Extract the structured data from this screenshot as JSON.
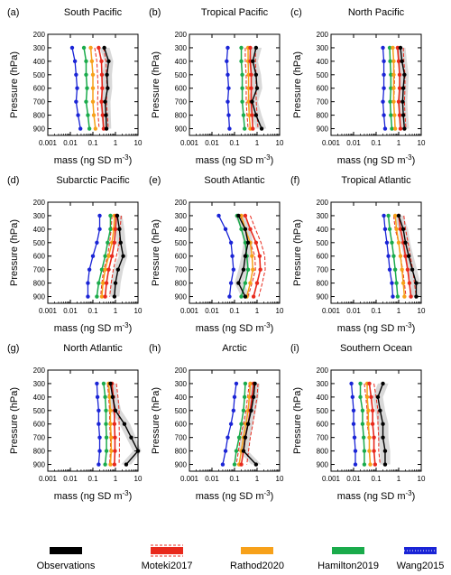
{
  "chart_data": {
    "type": "line",
    "ylabel": "Pressure (hPa)",
    "xlabel_base": "mass (ng SD m",
    "xlabel_sup": "-3",
    "xlabel_tail": ")",
    "x_scale": "log",
    "xlim": [
      0.001,
      10
    ],
    "ylim": [
      950,
      200
    ],
    "x_ticks": [
      "0.001",
      "0.01",
      "0.1",
      "1",
      "10"
    ],
    "y_ticks": [
      200,
      300,
      400,
      500,
      600,
      700,
      800,
      900
    ],
    "pressure_levels": [
      300,
      400,
      500,
      600,
      700,
      800,
      900
    ],
    "legend": [
      {
        "name": "Observations",
        "color": "#000000",
        "style": "solid"
      },
      {
        "name": "Moteki2017",
        "color": "#e8291c",
        "style": "dashed-band"
      },
      {
        "name": "Rathod2020",
        "color": "#f7a11a",
        "style": "solid"
      },
      {
        "name": "Hamilton2019",
        "color": "#1aab4b",
        "style": "solid"
      },
      {
        "name": "Wang2015",
        "color": "#1a24d6",
        "style": "dotted"
      }
    ],
    "panels": [
      {
        "label": "(a)",
        "title": "South Pacific",
        "obs": [
          0.32,
          0.5,
          0.42,
          0.45,
          0.35,
          0.38,
          0.4
        ],
        "obs_band": [
          [
            0.2,
            0.55
          ],
          [
            0.32,
            0.8
          ],
          [
            0.26,
            0.7
          ],
          [
            0.28,
            0.72
          ],
          [
            0.2,
            0.6
          ],
          [
            0.24,
            0.62
          ],
          [
            0.26,
            0.65
          ]
        ],
        "moteki": [
          0.18,
          0.24,
          0.25,
          0.26,
          0.24,
          0.27,
          0.3
        ],
        "moteki_range": [
          [
            0.12,
            0.3
          ],
          [
            0.15,
            0.38
          ],
          [
            0.16,
            0.4
          ],
          [
            0.17,
            0.42
          ],
          [
            0.16,
            0.4
          ],
          [
            0.17,
            0.44
          ],
          [
            0.19,
            0.48
          ]
        ],
        "rathod": [
          0.08,
          0.09,
          0.1,
          0.1,
          0.1,
          0.11,
          0.13
        ],
        "hamilton": [
          0.04,
          0.05,
          0.05,
          0.055,
          0.05,
          0.06,
          0.07
        ],
        "wang": [
          0.012,
          0.016,
          0.018,
          0.02,
          0.018,
          0.022,
          0.028
        ]
      },
      {
        "label": "(b)",
        "title": "Tropical Pacific",
        "obs": [
          0.9,
          0.65,
          0.9,
          1.0,
          0.6,
          0.9,
          1.6
        ],
        "obs_band": [
          [
            0.5,
            1.6
          ],
          [
            0.4,
            1.1
          ],
          [
            0.55,
            1.5
          ],
          [
            0.6,
            1.7
          ],
          [
            0.35,
            1.1
          ],
          [
            0.55,
            1.6
          ],
          [
            0.9,
            2.6
          ]
        ],
        "moteki": [
          0.5,
          0.5,
          0.55,
          0.55,
          0.55,
          0.6,
          0.65
        ],
        "moteki_range": [
          [
            0.3,
            0.85
          ],
          [
            0.3,
            0.85
          ],
          [
            0.33,
            0.9
          ],
          [
            0.33,
            0.9
          ],
          [
            0.33,
            0.92
          ],
          [
            0.36,
            1.0
          ],
          [
            0.4,
            1.1
          ]
        ],
        "rathod": [
          0.4,
          0.4,
          0.42,
          0.42,
          0.42,
          0.45,
          0.5
        ],
        "hamilton": [
          0.2,
          0.2,
          0.22,
          0.22,
          0.22,
          0.25,
          0.28
        ],
        "wang": [
          0.05,
          0.045,
          0.05,
          0.055,
          0.05,
          0.055,
          0.06
        ]
      },
      {
        "label": "(c)",
        "title": "North Pacific",
        "obs": [
          1.2,
          1.4,
          1.8,
          1.6,
          1.5,
          1.6,
          1.8
        ],
        "obs_band": [
          [
            0.8,
            2.0
          ],
          [
            0.9,
            2.3
          ],
          [
            1.1,
            2.8
          ],
          [
            1.0,
            2.6
          ],
          [
            0.9,
            2.4
          ],
          [
            1.0,
            2.6
          ],
          [
            1.1,
            2.9
          ]
        ],
        "moteki": [
          0.9,
          1.0,
          1.1,
          1.1,
          1.0,
          1.1,
          1.2
        ],
        "moteki_range": [
          [
            0.55,
            1.6
          ],
          [
            0.6,
            1.7
          ],
          [
            0.65,
            1.9
          ],
          [
            0.65,
            1.9
          ],
          [
            0.6,
            1.8
          ],
          [
            0.65,
            1.9
          ],
          [
            0.7,
            2.1
          ]
        ],
        "rathod": [
          0.55,
          0.6,
          0.6,
          0.6,
          0.6,
          0.65,
          0.7
        ],
        "hamilton": [
          0.4,
          0.42,
          0.45,
          0.45,
          0.42,
          0.45,
          0.5
        ],
        "wang": [
          0.2,
          0.22,
          0.22,
          0.22,
          0.2,
          0.22,
          0.25
        ]
      },
      {
        "label": "(d)",
        "title": "Subarctic Pacific",
        "obs": [
          1.2,
          1.5,
          1.7,
          2.2,
          1.3,
          1.0,
          0.9
        ],
        "obs_band": [
          [
            0.8,
            2.0
          ],
          [
            1.0,
            2.5
          ],
          [
            1.1,
            2.8
          ],
          [
            1.4,
            3.4
          ],
          [
            0.8,
            2.2
          ],
          [
            0.6,
            1.7
          ],
          [
            0.55,
            1.5
          ]
        ],
        "moteki": [
          1.1,
          1.0,
          0.9,
          0.7,
          0.5,
          0.4,
          0.35
        ],
        "moteki_range": [
          [
            0.7,
            1.8
          ],
          [
            0.65,
            1.6
          ],
          [
            0.55,
            1.5
          ],
          [
            0.45,
            1.1
          ],
          [
            0.3,
            0.8
          ],
          [
            0.25,
            0.65
          ],
          [
            0.22,
            0.55
          ]
        ],
        "rathod": [
          0.9,
          0.85,
          0.7,
          0.5,
          0.35,
          0.28,
          0.25
        ],
        "hamilton": [
          0.6,
          0.6,
          0.45,
          0.35,
          0.25,
          0.18,
          0.15
        ],
        "wang": [
          0.2,
          0.2,
          0.15,
          0.1,
          0.07,
          0.06,
          0.06
        ]
      },
      {
        "label": "(e)",
        "title": "South Atlantic",
        "obs": [
          0.15,
          0.3,
          0.4,
          0.3,
          0.25,
          0.15,
          0.3
        ],
        "obs_band": [
          [
            0.1,
            0.25
          ],
          [
            0.2,
            0.5
          ],
          [
            0.25,
            0.65
          ],
          [
            0.2,
            0.5
          ],
          [
            0.15,
            0.4
          ],
          [
            0.1,
            0.25
          ],
          [
            0.2,
            0.5
          ]
        ],
        "moteki": [
          0.3,
          0.5,
          0.9,
          1.3,
          1.4,
          1.0,
          0.7
        ],
        "moteki_range": [
          [
            0.18,
            0.5
          ],
          [
            0.3,
            0.85
          ],
          [
            0.5,
            1.5
          ],
          [
            0.8,
            2.2
          ],
          [
            0.85,
            2.3
          ],
          [
            0.6,
            1.7
          ],
          [
            0.4,
            1.2
          ]
        ],
        "rathod": [
          0.2,
          0.3,
          0.5,
          0.6,
          0.65,
          0.5,
          0.35
        ],
        "hamilton": [
          0.13,
          0.2,
          0.3,
          0.35,
          0.4,
          0.3,
          0.2
        ],
        "wang": [
          0.02,
          0.04,
          0.07,
          0.08,
          0.09,
          0.07,
          0.06
        ]
      },
      {
        "label": "(f)",
        "title": "Tropical Atlantic",
        "obs": [
          1.0,
          1.6,
          2.0,
          2.8,
          4.0,
          6.0,
          6.0
        ],
        "obs_band": [
          [
            0.6,
            1.6
          ],
          [
            1.0,
            2.6
          ],
          [
            1.2,
            3.2
          ],
          [
            1.7,
            4.5
          ],
          [
            2.4,
            6.5
          ],
          [
            3.6,
            9.0
          ],
          [
            3.6,
            9.0
          ]
        ],
        "moteki": [
          1.0,
          1.2,
          1.6,
          2.0,
          2.5,
          3.0,
          3.5
        ],
        "moteki_range": [
          [
            0.6,
            1.7
          ],
          [
            0.7,
            2.0
          ],
          [
            1.0,
            2.6
          ],
          [
            1.2,
            3.3
          ],
          [
            1.5,
            4.2
          ],
          [
            1.8,
            5.0
          ],
          [
            2.1,
            6.0
          ]
        ],
        "rathod": [
          0.7,
          0.8,
          1.0,
          1.2,
          1.4,
          1.6,
          1.8
        ],
        "hamilton": [
          0.35,
          0.4,
          0.5,
          0.6,
          0.7,
          0.8,
          0.9
        ],
        "wang": [
          0.22,
          0.25,
          0.3,
          0.35,
          0.4,
          0.5,
          0.55
        ]
      },
      {
        "label": "(g)",
        "title": "North Atlantic",
        "obs": [
          0.6,
          0.75,
          1.0,
          2.5,
          5.0,
          10.0,
          3.0
        ],
        "obs_band": [
          [
            0.4,
            1.0
          ],
          [
            0.5,
            1.3
          ],
          [
            0.6,
            1.8
          ],
          [
            1.5,
            4.5
          ],
          [
            3.0,
            8.0
          ],
          [
            6.0,
            14.0
          ],
          [
            1.8,
            5.0
          ]
        ],
        "moteki": [
          0.7,
          0.8,
          0.9,
          0.9,
          0.95,
          0.95,
          0.9
        ],
        "moteki_range": [
          [
            0.45,
            1.1
          ],
          [
            0.5,
            1.3
          ],
          [
            0.55,
            1.45
          ],
          [
            0.55,
            1.45
          ],
          [
            0.6,
            1.5
          ],
          [
            0.6,
            1.5
          ],
          [
            0.55,
            1.45
          ]
        ],
        "rathod": [
          0.5,
          0.55,
          0.6,
          0.6,
          0.65,
          0.65,
          0.6
        ],
        "hamilton": [
          0.3,
          0.35,
          0.38,
          0.38,
          0.4,
          0.4,
          0.35
        ],
        "wang": [
          0.15,
          0.16,
          0.18,
          0.18,
          0.2,
          0.2,
          0.18
        ]
      },
      {
        "label": "(h)",
        "title": "Arctic",
        "obs": [
          0.8,
          0.7,
          0.55,
          0.4,
          0.3,
          0.25,
          0.9
        ],
        "obs_band": [
          [
            0.5,
            1.3
          ],
          [
            0.45,
            1.15
          ],
          [
            0.35,
            0.9
          ],
          [
            0.25,
            0.65
          ],
          [
            0.18,
            0.5
          ],
          [
            0.15,
            0.4
          ],
          [
            0.55,
            1.5
          ]
        ],
        "moteki": [
          0.7,
          0.6,
          0.5,
          0.4,
          0.3,
          0.25,
          0.2
        ],
        "moteki_range": [
          [
            0.45,
            1.1
          ],
          [
            0.38,
            1.0
          ],
          [
            0.32,
            0.8
          ],
          [
            0.25,
            0.65
          ],
          [
            0.18,
            0.5
          ],
          [
            0.15,
            0.42
          ],
          [
            0.12,
            0.35
          ]
        ],
        "rathod": [
          0.5,
          0.45,
          0.4,
          0.32,
          0.25,
          0.2,
          0.16
        ],
        "hamilton": [
          0.3,
          0.28,
          0.25,
          0.2,
          0.16,
          0.12,
          0.1
        ],
        "wang": [
          0.12,
          0.1,
          0.09,
          0.07,
          0.05,
          0.04,
          0.03
        ]
      },
      {
        "label": "(i)",
        "title": "Southern Ocean",
        "obs": [
          0.2,
          0.12,
          0.15,
          0.2,
          0.2,
          0.25,
          0.25
        ],
        "obs_band": [
          [
            0.12,
            0.35
          ],
          [
            0.07,
            0.2
          ],
          [
            0.09,
            0.25
          ],
          [
            0.12,
            0.35
          ],
          [
            0.12,
            0.35
          ],
          [
            0.15,
            0.42
          ],
          [
            0.15,
            0.42
          ]
        ],
        "moteki": [
          0.05,
          0.06,
          0.07,
          0.07,
          0.08,
          0.08,
          0.09
        ],
        "moteki_range": [
          [
            0.03,
            0.08
          ],
          [
            0.035,
            0.1
          ],
          [
            0.04,
            0.12
          ],
          [
            0.04,
            0.12
          ],
          [
            0.05,
            0.13
          ],
          [
            0.05,
            0.13
          ],
          [
            0.055,
            0.15
          ]
        ],
        "rathod": [
          0.04,
          0.04,
          0.045,
          0.045,
          0.05,
          0.05,
          0.055
        ],
        "hamilton": [
          0.02,
          0.02,
          0.025,
          0.025,
          0.028,
          0.03,
          0.03
        ],
        "wang": [
          0.008,
          0.009,
          0.01,
          0.01,
          0.011,
          0.012,
          0.012
        ]
      }
    ]
  }
}
